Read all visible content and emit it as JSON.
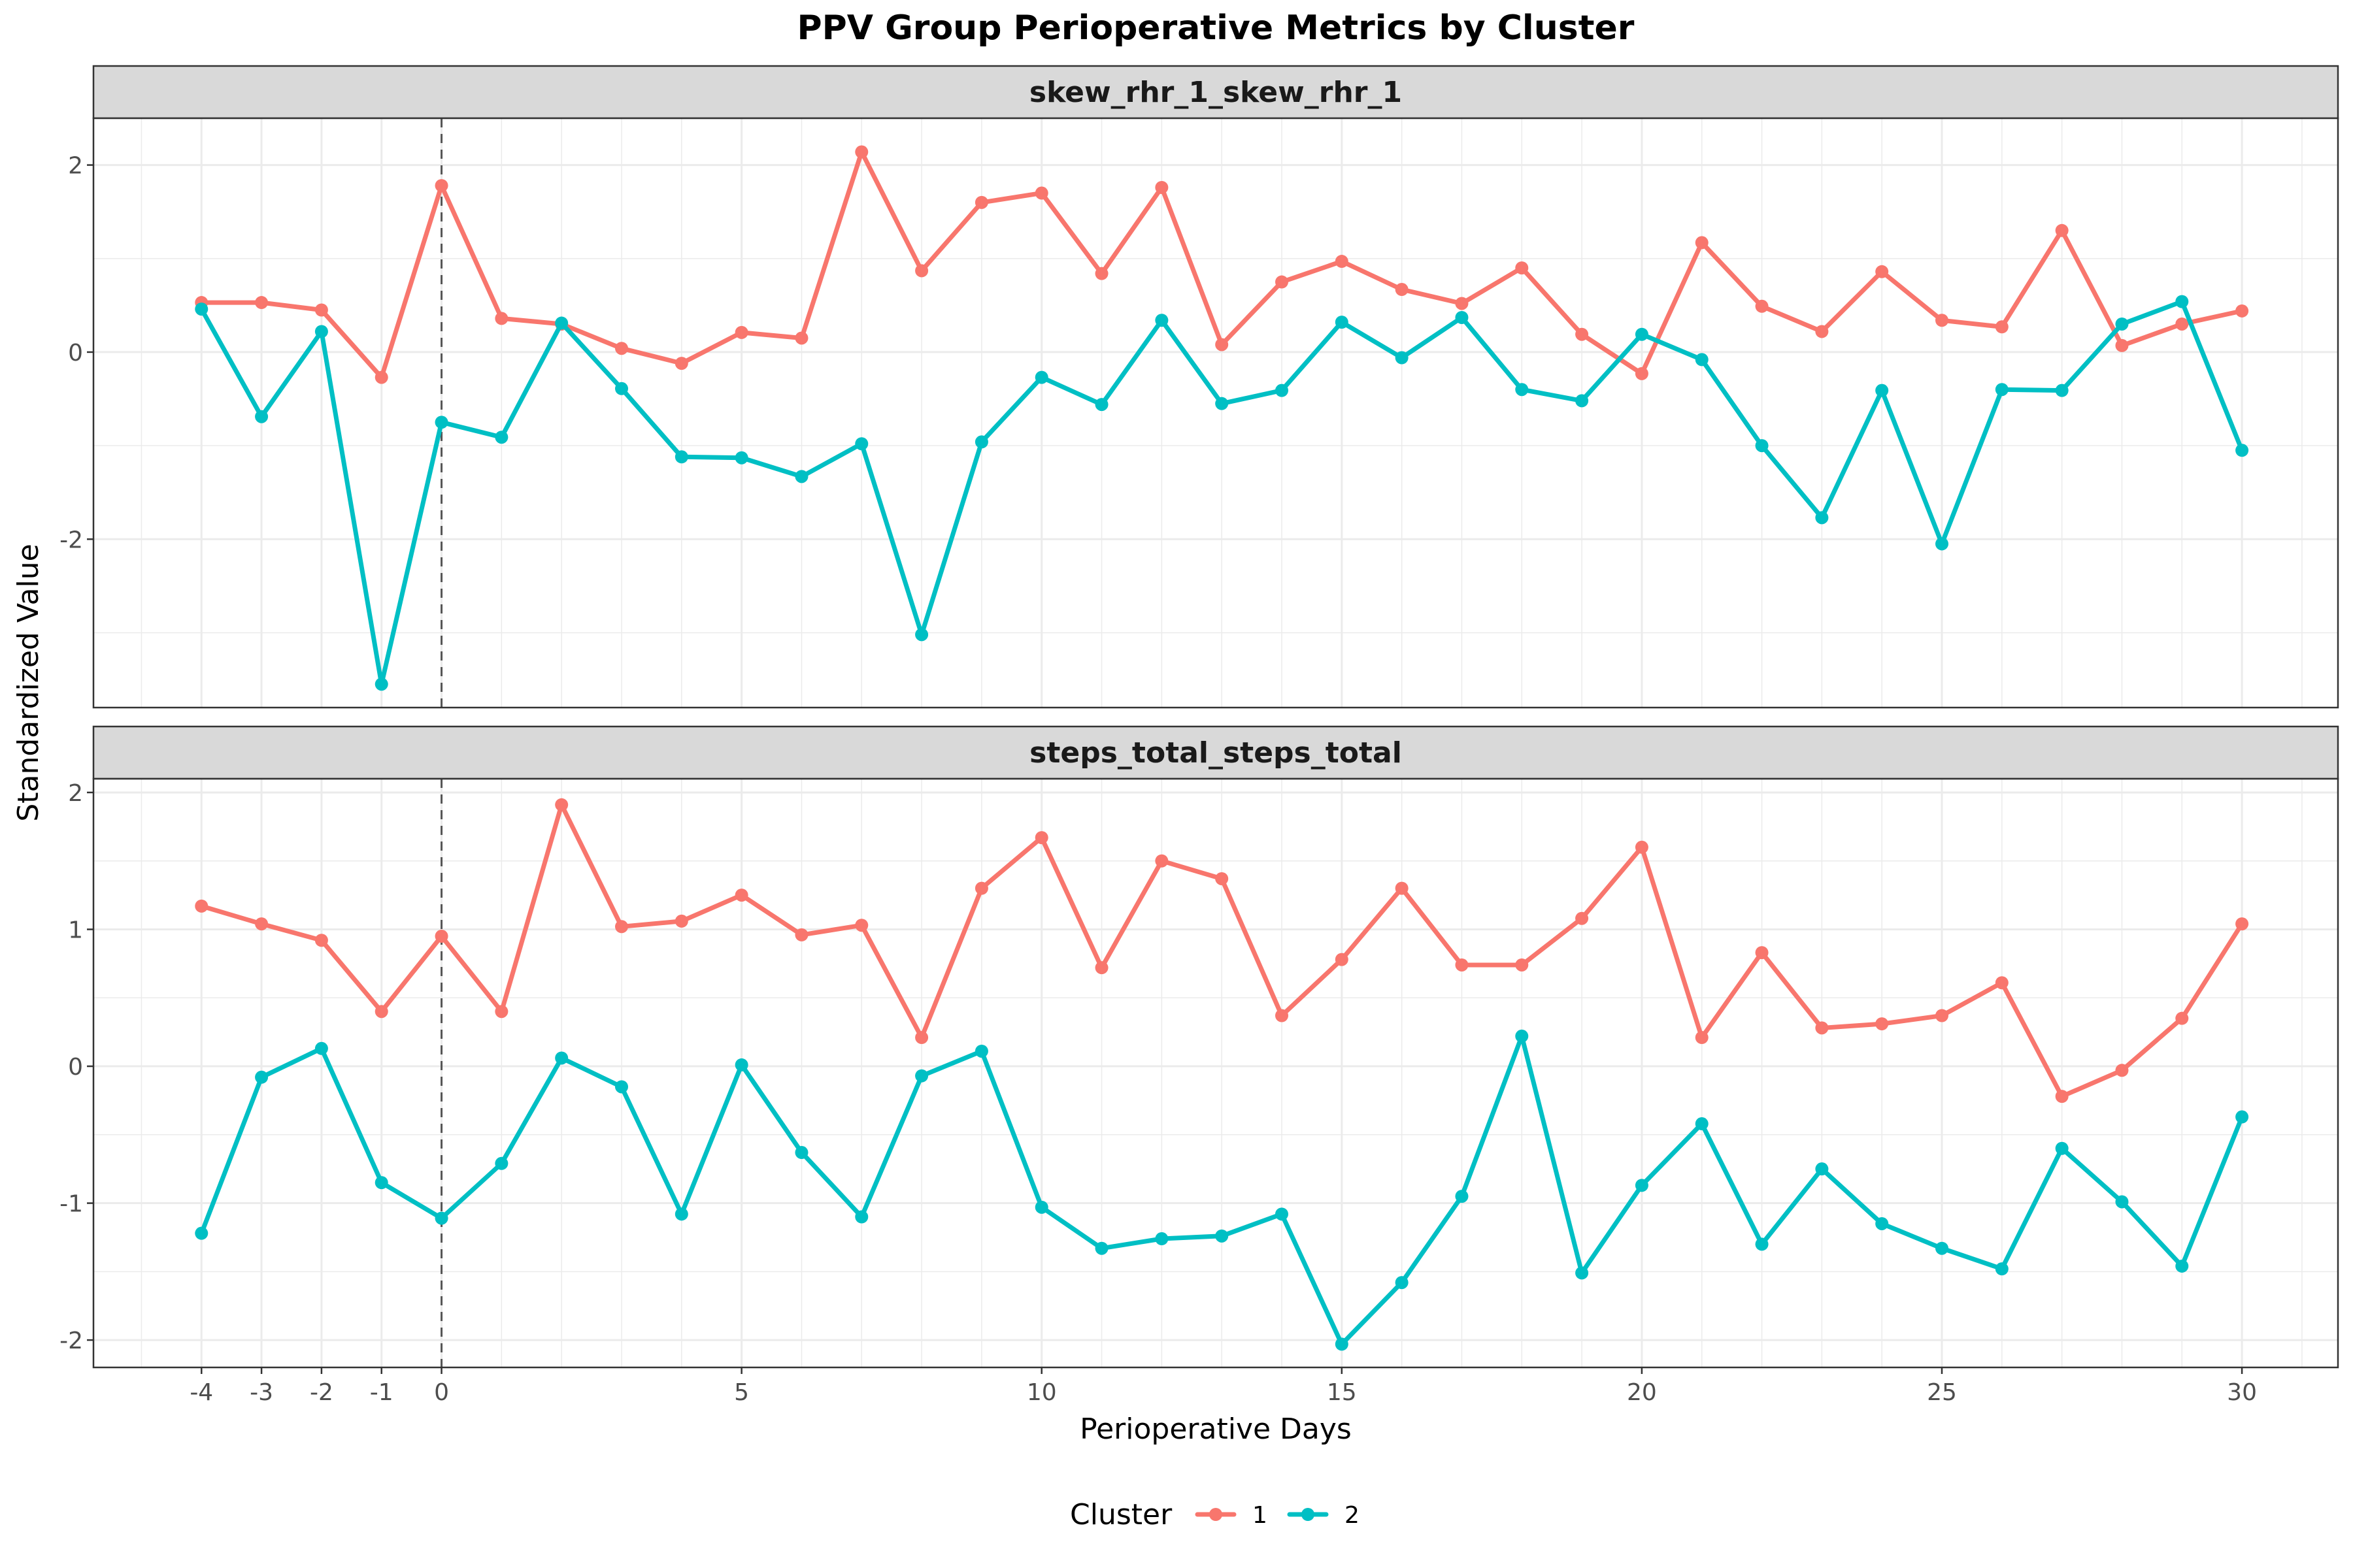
{
  "chart_data": {
    "type": "line",
    "title": "PPV Group Perioperative Metrics by Cluster",
    "xlabel": "Perioperative Days",
    "ylabel": "Standardized Value",
    "x": [
      -4,
      -3,
      -2,
      -1,
      0,
      1,
      2,
      3,
      4,
      5,
      6,
      7,
      8,
      9,
      10,
      11,
      12,
      13,
      14,
      15,
      16,
      17,
      18,
      19,
      20,
      21,
      22,
      23,
      24,
      25,
      26,
      27,
      28,
      29,
      30
    ],
    "x_ticks": [
      -4,
      -3,
      -2,
      -1,
      0,
      5,
      10,
      15,
      20,
      25,
      30
    ],
    "x_tick_labels": [
      "-4",
      "-3",
      "-2",
      "-1",
      "0",
      "5",
      "10",
      "15",
      "20",
      "25",
      "30"
    ],
    "xlim": [
      -5.8,
      31.6
    ],
    "vline_x": 0,
    "grid": true,
    "legend": {
      "title": "Cluster",
      "position": "bottom",
      "entries": [
        {
          "label": "1",
          "color": "#F8766D"
        },
        {
          "label": "2",
          "color": "#00BFC4"
        }
      ]
    },
    "panels": [
      {
        "strip": "skew_rhr_1_skew_rhr_1",
        "ylim": [
          -3.8,
          2.5
        ],
        "y_ticks": [
          -2,
          0,
          2
        ],
        "y_tick_labels": [
          "-2",
          "0",
          "2"
        ],
        "series": [
          {
            "name": "1",
            "color": "#F8766D",
            "values": [
              0.53,
              0.53,
              0.45,
              -0.27,
              1.78,
              0.36,
              0.3,
              0.04,
              -0.12,
              0.21,
              0.15,
              2.14,
              0.87,
              1.6,
              1.7,
              0.84,
              1.76,
              0.08,
              0.75,
              0.97,
              0.67,
              0.52,
              0.9,
              0.19,
              -0.23,
              1.17,
              0.49,
              0.22,
              0.86,
              0.34,
              0.27,
              1.3,
              0.07,
              0.3,
              0.44
            ]
          },
          {
            "name": "2",
            "color": "#00BFC4",
            "values": [
              0.46,
              -0.69,
              0.22,
              -3.55,
              -0.75,
              -0.91,
              0.31,
              -0.39,
              -1.12,
              -1.13,
              -1.33,
              -0.98,
              -3.02,
              -0.96,
              -0.27,
              -0.56,
              0.34,
              -0.55,
              -0.41,
              0.32,
              -0.06,
              0.37,
              -0.4,
              -0.52,
              0.19,
              -0.08,
              -1.0,
              -1.77,
              -0.41,
              -2.05,
              -0.4,
              -0.41,
              0.3,
              0.54,
              -1.05
            ]
          }
        ]
      },
      {
        "strip": "steps_total_steps_total",
        "ylim": [
          -2.2,
          2.1
        ],
        "y_ticks": [
          -2,
          -1,
          0,
          1,
          2
        ],
        "y_tick_labels": [
          "-2",
          "-1",
          "0",
          "1",
          "2"
        ],
        "series": [
          {
            "name": "1",
            "color": "#F8766D",
            "values": [
              1.17,
              1.04,
              0.92,
              0.4,
              0.95,
              0.4,
              1.91,
              1.02,
              1.06,
              1.25,
              0.96,
              1.03,
              0.21,
              1.3,
              1.67,
              0.72,
              1.5,
              1.37,
              0.37,
              0.78,
              1.3,
              0.74,
              0.74,
              1.08,
              1.6,
              0.21,
              0.83,
              0.28,
              0.31,
              0.37,
              0.61,
              -0.22,
              -0.03,
              0.35,
              1.04
            ]
          },
          {
            "name": "2",
            "color": "#00BFC4",
            "values": [
              -1.22,
              -0.08,
              0.13,
              -0.85,
              -1.11,
              -0.71,
              0.06,
              -0.15,
              -1.08,
              0.01,
              -0.63,
              -1.1,
              -0.07,
              0.11,
              -1.03,
              -1.33,
              -1.26,
              -1.24,
              -1.08,
              -2.03,
              -1.58,
              -0.95,
              0.22,
              -1.51,
              -0.87,
              -0.42,
              -1.3,
              -0.75,
              -1.15,
              -1.33,
              -1.48,
              -0.6,
              -0.99,
              -1.46,
              -0.37
            ]
          }
        ]
      }
    ]
  }
}
